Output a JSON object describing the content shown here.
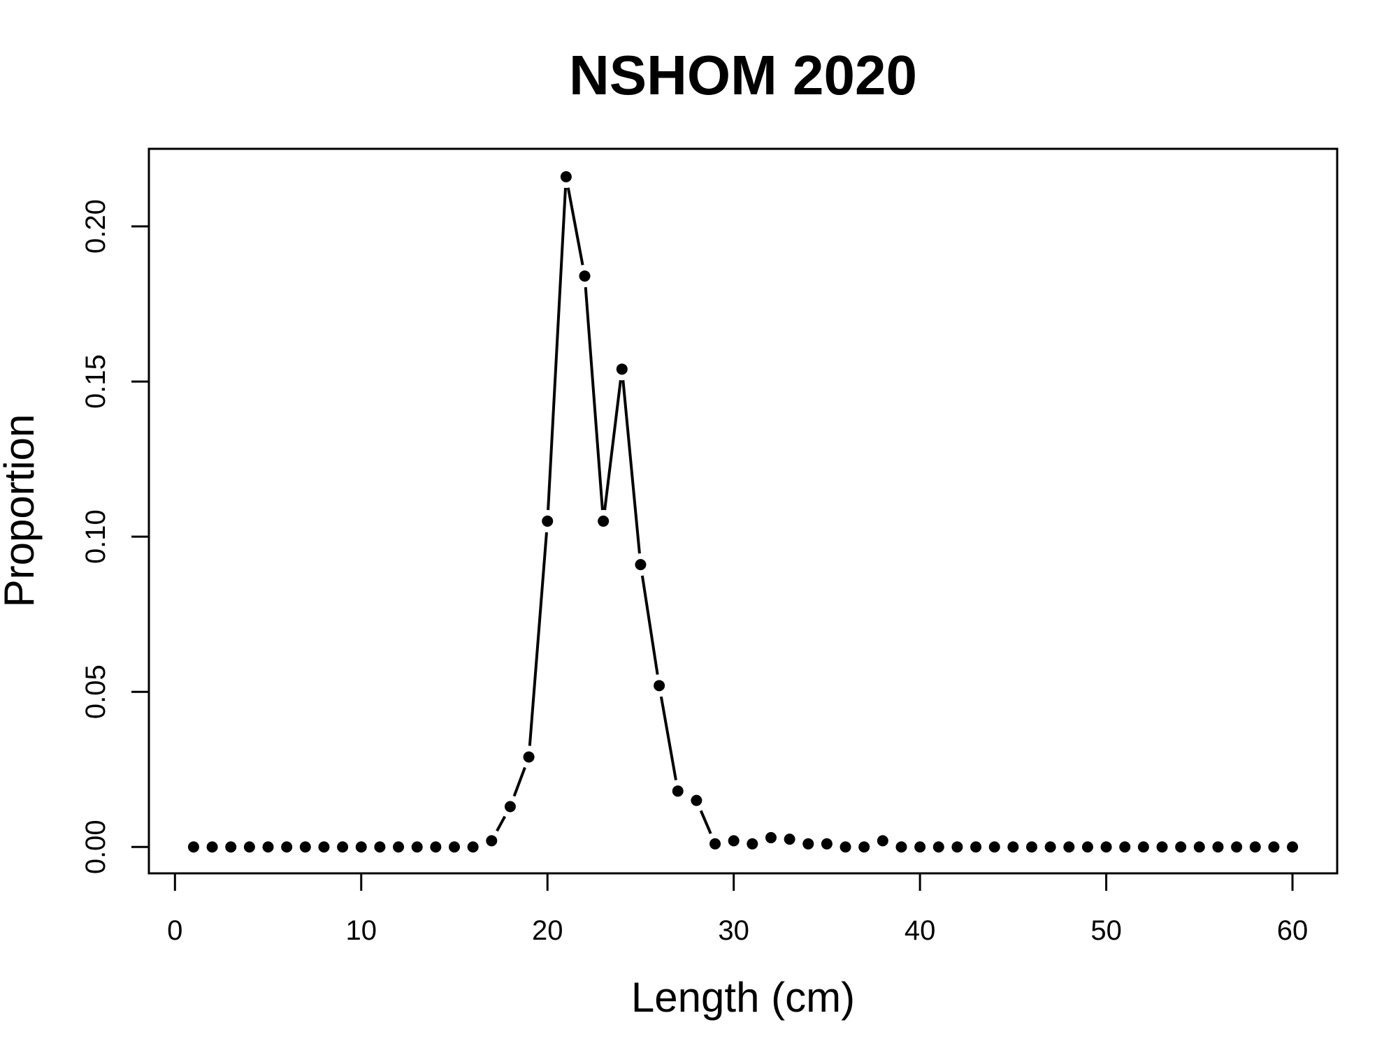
{
  "chart_data": {
    "type": "line",
    "title": "NSHOM 2020",
    "xlabel": "Length (cm)",
    "ylabel": "Proportion",
    "xlim": [
      -1.4,
      62.4
    ],
    "ylim": [
      -0.0085,
      0.225
    ],
    "x_ticks": [
      0,
      10,
      20,
      30,
      40,
      50,
      60
    ],
    "x_tick_labels": [
      "0",
      "10",
      "20",
      "30",
      "40",
      "50",
      "60"
    ],
    "y_ticks": [
      0.0,
      0.05,
      0.1,
      0.15,
      0.2
    ],
    "y_tick_labels": [
      "0.00",
      "0.05",
      "0.10",
      "0.15",
      "0.20"
    ],
    "grid": false,
    "legend": "none",
    "colors": {
      "line": "#000000",
      "points": "#000000"
    },
    "x": [
      1,
      2,
      3,
      4,
      5,
      6,
      7,
      8,
      9,
      10,
      11,
      12,
      13,
      14,
      15,
      16,
      17,
      18,
      19,
      20,
      21,
      22,
      23,
      24,
      25,
      26,
      27,
      28,
      29,
      30,
      31,
      32,
      33,
      34,
      35,
      36,
      37,
      38,
      39,
      40,
      41,
      42,
      43,
      44,
      45,
      46,
      47,
      48,
      49,
      50,
      51,
      52,
      53,
      54,
      55,
      56,
      57,
      58,
      59,
      60
    ],
    "y": [
      0,
      0,
      0,
      0,
      0,
      0,
      0,
      0,
      0,
      0,
      0,
      0,
      0,
      0,
      0,
      0,
      0.002,
      0.013,
      0.029,
      0.105,
      0.216,
      0.184,
      0.105,
      0.154,
      0.091,
      0.052,
      0.018,
      0.015,
      0.001,
      0.002,
      0.001,
      0.003,
      0.0025,
      0.001,
      0.001,
      0,
      0,
      0.002,
      0,
      0,
      0,
      0,
      0,
      0,
      0,
      0,
      0,
      0,
      0,
      0,
      0,
      0,
      0,
      0,
      0,
      0,
      0,
      0,
      0,
      0
    ]
  }
}
